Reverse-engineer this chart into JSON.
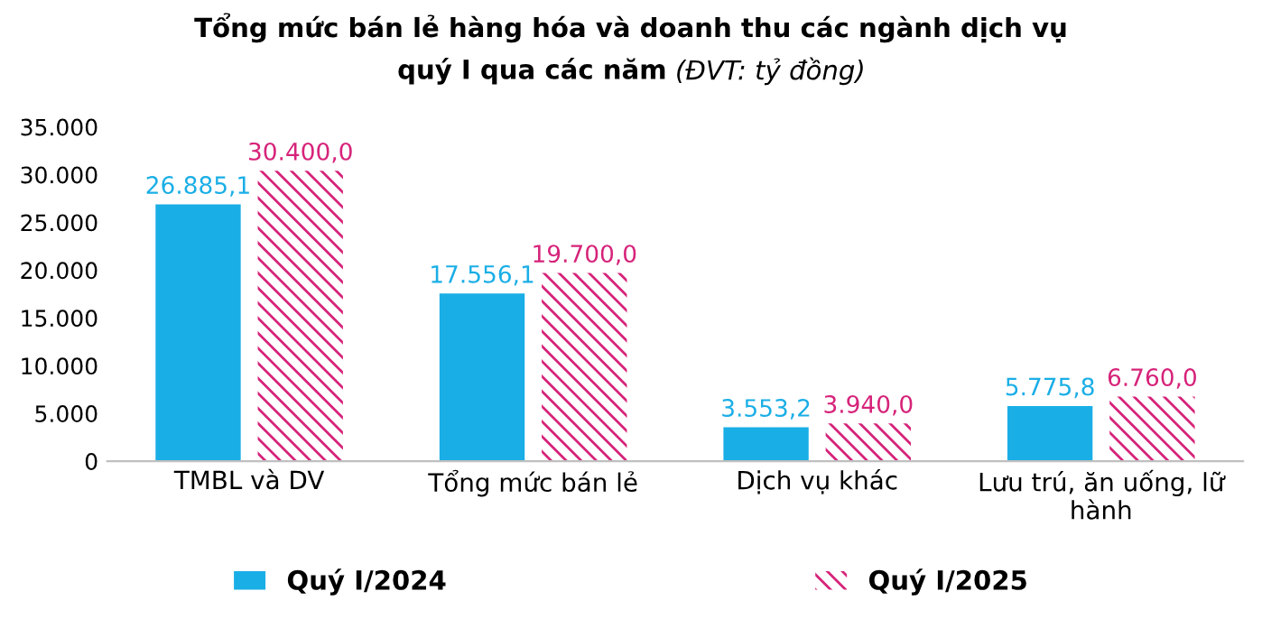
{
  "chart_data": {
    "type": "bar",
    "title": "Tổng mức bán lẻ hàng hóa và doanh thu các ngành dịch vụ\nquý I qua các năm",
    "subtitle": "(ĐVT: tỷ đồng)",
    "categories": [
      "TMBL và DV",
      "Tổng mức bán lẻ",
      "Dịch vụ khác",
      "Lưu trú, ăn uống, lữ hành"
    ],
    "series": [
      {
        "name": "Quý I/2024",
        "color": "#1aaee6",
        "values": [
          26885.1,
          17556.1,
          3553.2,
          5775.8
        ],
        "value_labels": [
          "26.885,1",
          "17.556,1",
          "3.553,2",
          "5.775,8"
        ]
      },
      {
        "name": "Quý I/2025",
        "color": "#d6237a",
        "values": [
          30400.0,
          19700.0,
          3940.0,
          6760.0
        ],
        "value_labels": [
          "30.400,0",
          "19.700,0",
          "3.940,0",
          "6.760,0"
        ]
      }
    ],
    "ylim": [
      0,
      35000
    ],
    "yticks": [
      0,
      {
        "value": 5000,
        "label": "5.000"
      },
      {
        "value": 10000,
        "label": "10.000"
      },
      {
        "value": 15000,
        "label": "15.000"
      },
      {
        "value": 20000,
        "label": "20.000"
      },
      {
        "value": 25000,
        "label": "25.000"
      },
      {
        "value": 30000,
        "label": "30.000"
      },
      {
        "value": 35000,
        "label": "35.000"
      }
    ],
    "grid": false,
    "legend": "bottom"
  }
}
